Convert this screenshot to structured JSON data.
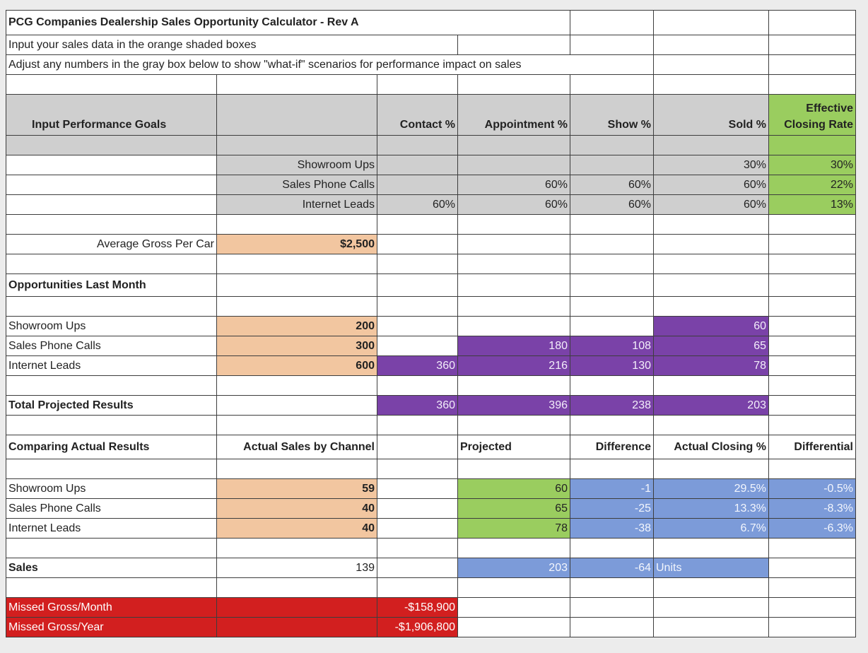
{
  "title": "PCG Companies Dealership Sales Opportunity Calculator - Rev A",
  "subtitle1": "Input your sales data in the orange shaded boxes",
  "subtitle2": "Adjust any numbers in the gray box below to show \"what-if\" scenarios for performance impact on sales",
  "goals": {
    "heading": "Input Performance Goals",
    "headers": {
      "contact": "Contact %",
      "appointment": "Appointment %",
      "show": "Show %",
      "sold": "Sold %",
      "ecr_line1": "Effective",
      "ecr_line2": "Closing Rate"
    },
    "rows": [
      {
        "label": "Showroom Ups",
        "contact": "",
        "appointment": "",
        "show": "",
        "sold": "30%",
        "ecr": "30%"
      },
      {
        "label": "Sales Phone Calls",
        "contact": "",
        "appointment": "60%",
        "show": "60%",
        "sold": "60%",
        "ecr": "22%"
      },
      {
        "label": "Internet Leads",
        "contact": "60%",
        "appointment": "60%",
        "show": "60%",
        "sold": "60%",
        "ecr": "13%"
      }
    ]
  },
  "avg_gross": {
    "label": "Average Gross Per Car",
    "value": "$2,500"
  },
  "opportunities": {
    "heading": "Opportunities Last Month",
    "rows": [
      {
        "label": "Showroom Ups",
        "input": "200",
        "contact": "",
        "appointment": "",
        "show": "",
        "sold": "60"
      },
      {
        "label": "Sales Phone Calls",
        "input": "300",
        "contact": "",
        "appointment": "180",
        "show": "108",
        "sold": "65"
      },
      {
        "label": "Internet Leads",
        "input": "600",
        "contact": "360",
        "appointment": "216",
        "show": "130",
        "sold": "78"
      }
    ]
  },
  "totals": {
    "label": "Total Projected Results",
    "contact": "360",
    "appointment": "396",
    "show": "238",
    "sold": "203"
  },
  "comparing": {
    "heading": "Comparing Actual Results",
    "headers": {
      "actual": "Actual Sales by Channel",
      "projected": "Projected",
      "difference": "Difference",
      "closing": "Actual Closing %",
      "differential": "Differential"
    },
    "rows": [
      {
        "label": "Showroom Ups",
        "actual": "59",
        "projected": "60",
        "difference": "-1",
        "closing": "29.5%",
        "differential": "-0.5%"
      },
      {
        "label": "Sales Phone Calls",
        "actual": "40",
        "projected": "65",
        "difference": "-25",
        "closing": "13.3%",
        "differential": "-8.3%"
      },
      {
        "label": "Internet Leads",
        "actual": "40",
        "projected": "78",
        "difference": "-38",
        "closing": "6.7%",
        "differential": "-6.3%"
      }
    ]
  },
  "sales": {
    "label": "Sales",
    "actual": "139",
    "projected": "203",
    "difference": "-64",
    "unit": "Units"
  },
  "missed": {
    "month_label": "Missed Gross/Month",
    "month_value": "-$158,900",
    "year_label": "Missed Gross/Year",
    "year_value": "-$1,906,800"
  }
}
